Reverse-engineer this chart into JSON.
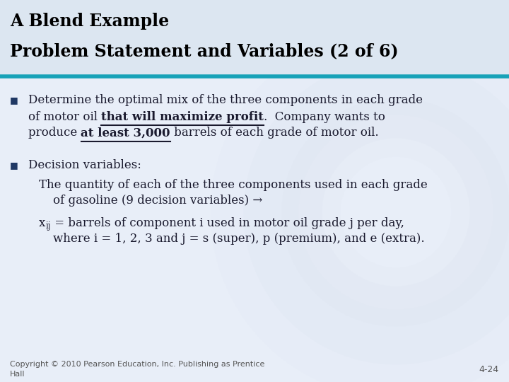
{
  "title_line1": "A Blend Example",
  "title_line2": "Problem Statement and Variables (2 of 6)",
  "title_bg_color": "#dce6f1",
  "body_bg_color": "#e8eef8",
  "separator_color": "#17a2b8",
  "bullet_color": "#1f3864",
  "body_text_color": "#1a1a2e",
  "title_text_color": "#000000",
  "watermark_color": "#d0dae8",
  "font_size_title": 17,
  "font_size_body": 12,
  "font_size_footer": 8,
  "copyright": "Copyright © 2010 Pearson Education, Inc. Publishing as Prentice\nHall",
  "page_num": "4-24"
}
